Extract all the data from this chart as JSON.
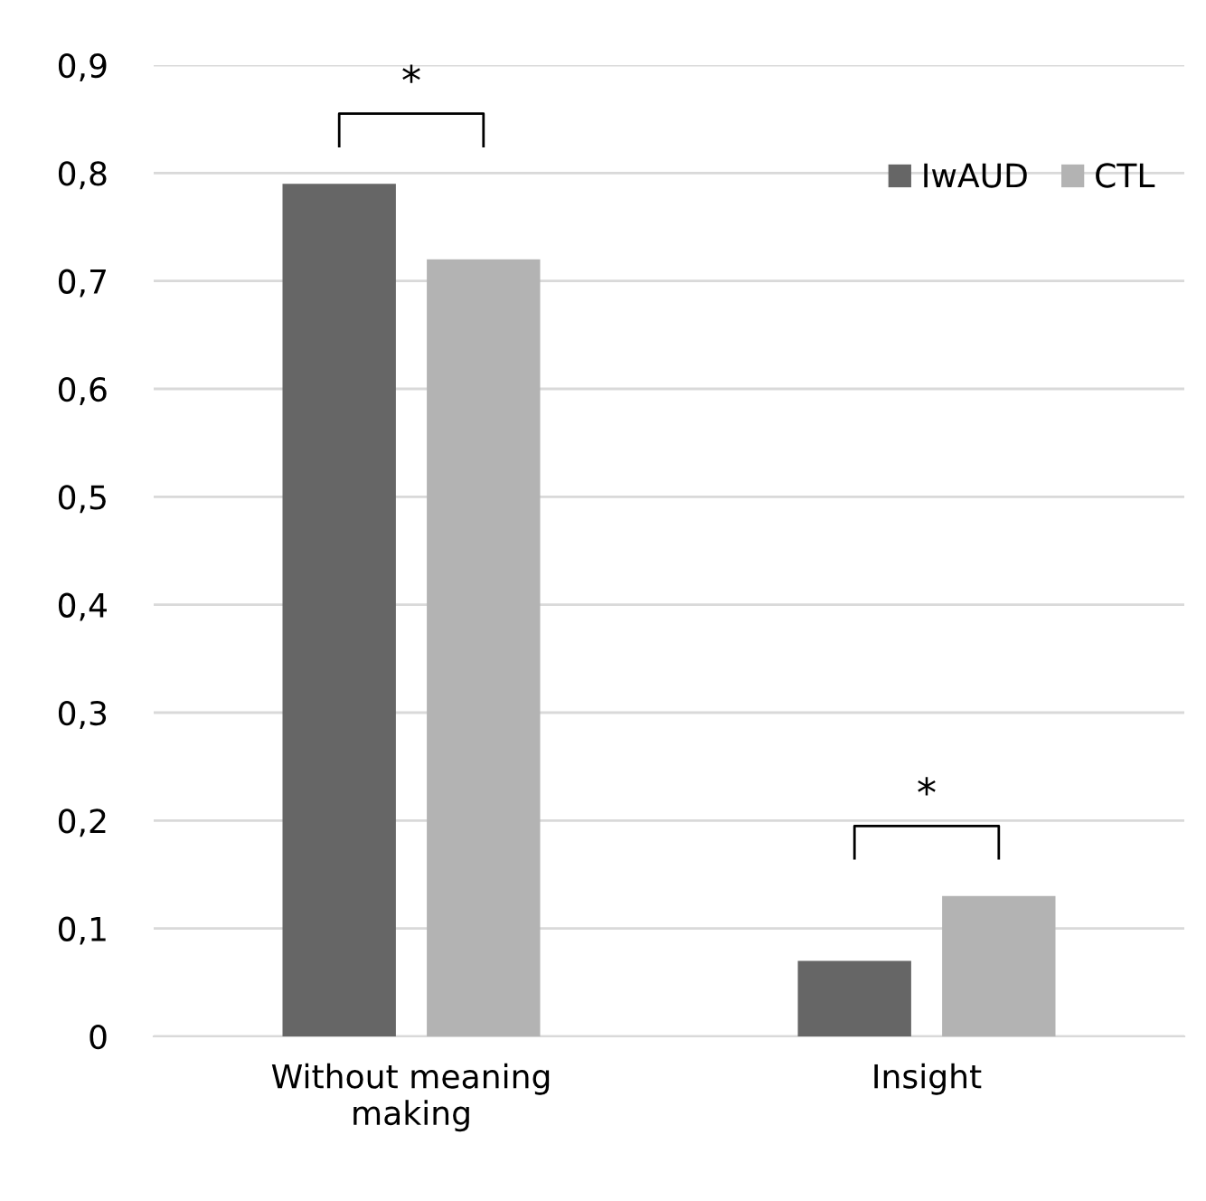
{
  "chart_data": {
    "type": "bar",
    "categories": [
      "Without meaning making",
      "Insight"
    ],
    "series": [
      {
        "name": "IwAUD",
        "color": "#666666",
        "values": [
          0.79,
          0.07
        ]
      },
      {
        "name": "CTL",
        "color": "#b3b3b3",
        "values": [
          0.72,
          0.13
        ]
      }
    ],
    "ylim": [
      0,
      0.9
    ],
    "yticks": [
      0,
      {
        "value": 0.1,
        "label": "0,1"
      },
      {
        "value": 0.2,
        "label": "0,2"
      },
      {
        "value": 0.3,
        "label": "0,3"
      },
      {
        "value": 0.4,
        "label": "0,4"
      },
      {
        "value": 0.5,
        "label": "0,5"
      },
      {
        "value": 0.6,
        "label": "0,6"
      },
      {
        "value": 0.7,
        "label": "0,7"
      },
      {
        "value": 0.8,
        "label": "0,8"
      },
      {
        "value": 0.9,
        "label": "0,9"
      }
    ],
    "grid": "y",
    "legend": "top right",
    "annotations": [
      "*",
      "*"
    ]
  }
}
